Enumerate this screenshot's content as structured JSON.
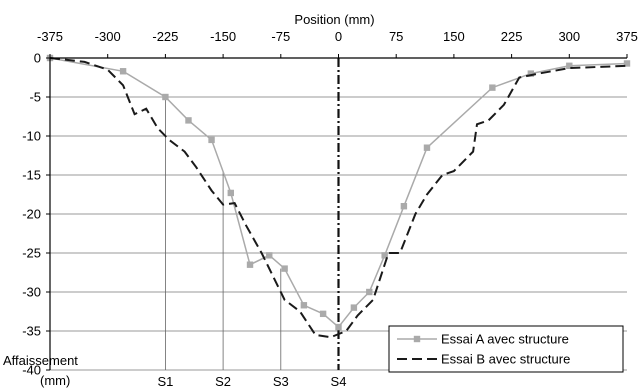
{
  "chart_data": {
    "type": "line",
    "title": "",
    "xlabel": "Position (mm)",
    "ylabel": "Affaissement (mm)",
    "ylabel_lines": [
      "Affaissement",
      "(mm)"
    ],
    "xlim": [
      -375,
      375
    ],
    "ylim": [
      -40,
      0
    ],
    "x_ticks": [
      -375,
      -300,
      -225,
      -150,
      -75,
      0,
      75,
      150,
      225,
      300,
      375
    ],
    "y_ticks": [
      0,
      -5,
      -10,
      -15,
      -20,
      -25,
      -30,
      -35,
      -40
    ],
    "grid": "horizontal",
    "legend_position": "bottom-right",
    "markers": [
      {
        "label": "S1",
        "x": -225,
        "y": -5
      },
      {
        "label": "S2",
        "x": -150,
        "y": -14.5
      },
      {
        "label": "S3",
        "x": -75,
        "y": -27
      },
      {
        "label": "S4",
        "x": 0,
        "y": -35
      }
    ],
    "series": [
      {
        "name": "Essai A avec structure",
        "style": "solid-marker",
        "color": "#aaaaaa",
        "points": [
          [
            -375,
            0
          ],
          [
            -280,
            -1.7
          ],
          [
            -225,
            -5
          ],
          [
            -195,
            -8
          ],
          [
            -165,
            -10.5
          ],
          [
            -140,
            -17.3
          ],
          [
            -115,
            -26.5
          ],
          [
            -90,
            -25.3
          ],
          [
            -70,
            -27
          ],
          [
            -45,
            -31.7
          ],
          [
            -20,
            -32.8
          ],
          [
            0,
            -34.5
          ],
          [
            20,
            -32
          ],
          [
            40,
            -30
          ],
          [
            60,
            -25.3
          ],
          [
            85,
            -19
          ],
          [
            115,
            -11.5
          ],
          [
            200,
            -3.8
          ],
          [
            250,
            -2
          ],
          [
            300,
            -1
          ],
          [
            375,
            -0.7
          ]
        ]
      },
      {
        "name": "Essai B avec structure",
        "style": "dashed",
        "color": "#1a1a1a",
        "points": [
          [
            -375,
            0
          ],
          [
            -330,
            -0.5
          ],
          [
            -300,
            -1.5
          ],
          [
            -280,
            -3.5
          ],
          [
            -265,
            -7.2
          ],
          [
            -250,
            -6.5
          ],
          [
            -235,
            -9
          ],
          [
            -220,
            -10.5
          ],
          [
            -200,
            -12
          ],
          [
            -185,
            -14
          ],
          [
            -165,
            -17
          ],
          [
            -150,
            -18.8
          ],
          [
            -135,
            -18.6
          ],
          [
            -120,
            -21.5
          ],
          [
            -100,
            -25
          ],
          [
            -85,
            -28
          ],
          [
            -70,
            -31
          ],
          [
            -50,
            -32.5
          ],
          [
            -30,
            -35.5
          ],
          [
            -10,
            -35.8
          ],
          [
            10,
            -35
          ],
          [
            25,
            -33
          ],
          [
            45,
            -31
          ],
          [
            65,
            -25
          ],
          [
            80,
            -25
          ],
          [
            100,
            -20
          ],
          [
            115,
            -17.5
          ],
          [
            135,
            -15
          ],
          [
            150,
            -14.5
          ],
          [
            175,
            -12
          ],
          [
            180,
            -8.5
          ],
          [
            195,
            -8
          ],
          [
            215,
            -6
          ],
          [
            235,
            -2.5
          ],
          [
            260,
            -2
          ],
          [
            300,
            -1.3
          ],
          [
            375,
            -1
          ]
        ]
      }
    ]
  }
}
